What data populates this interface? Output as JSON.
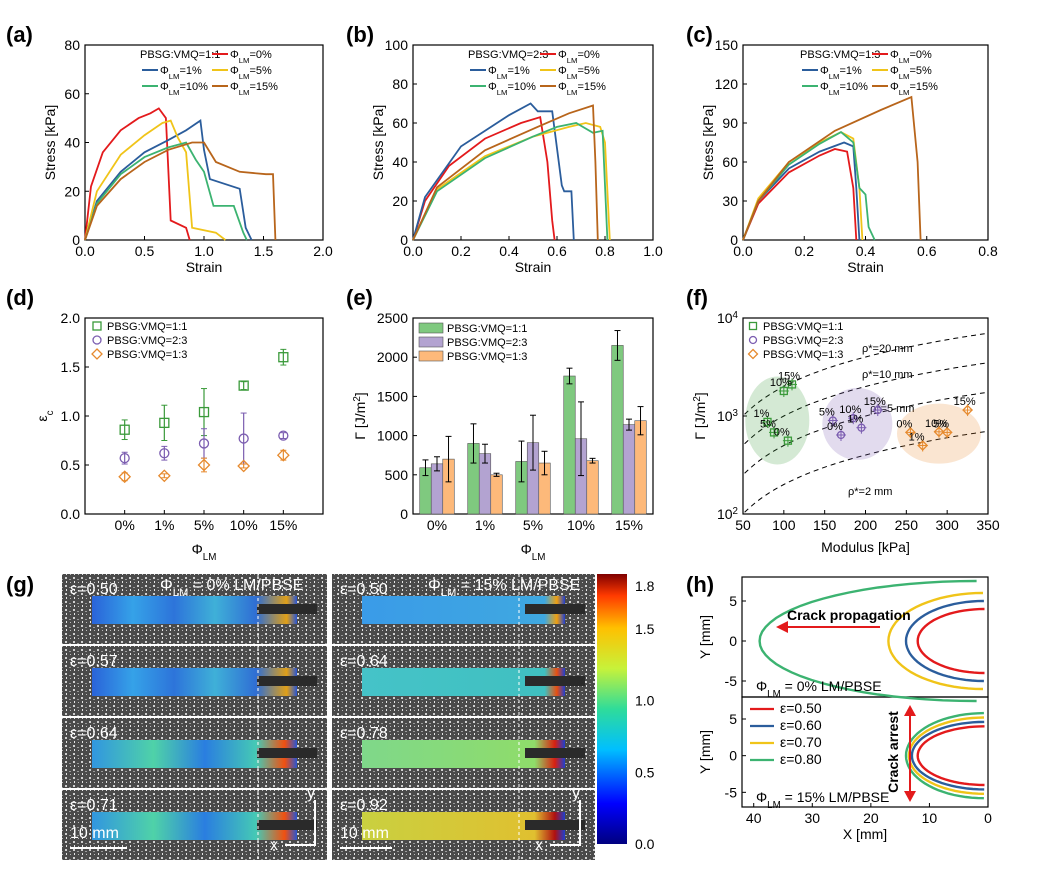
{
  "panels": [
    {
      "label": "(a)"
    },
    {
      "label": "(b)"
    },
    {
      "label": "(c)"
    },
    {
      "label": "(d)"
    },
    {
      "label": "(e)"
    },
    {
      "label": "(f)"
    },
    {
      "label": "(g)"
    },
    {
      "label": "(h)"
    }
  ],
  "colors": {
    "phi0": "#e31a1c",
    "phi1": "#2b5d9c",
    "phi5": "#f0c419",
    "phi10": "#3cb371",
    "phi15": "#b8651b",
    "s11": "#3a9a3a",
    "s23": "#7b5db0",
    "s13": "#e68a2e",
    "bar11": "#7fc97f",
    "bar23": "#b3a3d1",
    "bar13": "#fdb97a"
  },
  "chart_data": [
    {
      "id": "a",
      "type": "line",
      "xlabel": "Strain",
      "ylabel": "Stress [kPa]",
      "xlim": [
        0,
        2.0
      ],
      "ylim": [
        0,
        80
      ],
      "xticks": [
        "0.0",
        "0.5",
        "1.0",
        "1.5",
        "2.0"
      ],
      "yticks": [
        "0",
        "20",
        "40",
        "60",
        "80"
      ],
      "legend_title": "PBSG:VMQ=1:1",
      "legend_labels": [
        "ΦLM=0%",
        "ΦLM=1%",
        "ΦLM=5%",
        "ΦLM=10%",
        "ΦLM=15%"
      ],
      "series": [
        {
          "name": "ΦLM=0%",
          "color": "#e31a1c",
          "x": [
            0,
            0.05,
            0.15,
            0.3,
            0.45,
            0.55,
            0.62,
            0.68,
            0.72,
            0.85,
            0.88
          ],
          "y": [
            0,
            22,
            36,
            45,
            50,
            52,
            54,
            50,
            8,
            5,
            0
          ]
        },
        {
          "name": "ΦLM=1%",
          "color": "#2b5d9c",
          "x": [
            0,
            0.1,
            0.3,
            0.5,
            0.7,
            0.85,
            0.97,
            1.0,
            1.05,
            1.3,
            1.35,
            1.4
          ],
          "y": [
            0,
            16,
            28,
            36,
            41,
            45,
            49,
            37,
            25,
            21,
            5,
            0
          ]
        },
        {
          "name": "ΦLM=5%",
          "color": "#f0c419",
          "x": [
            0,
            0.1,
            0.3,
            0.5,
            0.65,
            0.72,
            0.78,
            0.85,
            0.9,
            1.1,
            1.18
          ],
          "y": [
            0,
            20,
            35,
            43,
            48,
            49,
            42,
            36,
            5,
            3,
            0
          ]
        },
        {
          "name": "ΦLM=10%",
          "color": "#3cb371",
          "x": [
            0,
            0.1,
            0.3,
            0.5,
            0.7,
            0.85,
            0.93,
            1.0,
            1.08,
            1.25,
            1.33,
            1.36
          ],
          "y": [
            0,
            15,
            27,
            34,
            38,
            40,
            33,
            28,
            14,
            14,
            3,
            0
          ]
        },
        {
          "name": "ΦLM=15%",
          "color": "#b8651b",
          "x": [
            0,
            0.1,
            0.3,
            0.5,
            0.7,
            0.9,
            1.0,
            1.1,
            1.3,
            1.52,
            1.58,
            1.6
          ],
          "y": [
            0,
            14,
            25,
            32,
            37,
            40,
            40,
            32,
            28,
            27,
            27,
            0
          ]
        }
      ]
    },
    {
      "id": "b",
      "type": "line",
      "xlabel": "Strain",
      "ylabel": "Stress [kPa]",
      "xlim": [
        0,
        1.0
      ],
      "ylim": [
        0,
        100
      ],
      "xticks": [
        "0.0",
        "0.2",
        "0.4",
        "0.6",
        "0.8",
        "1.0"
      ],
      "yticks": [
        "0",
        "20",
        "40",
        "60",
        "80",
        "100"
      ],
      "legend_title": "PBSG:VMQ=2:3",
      "legend_labels": [
        "ΦLM=0%",
        "ΦLM=1%",
        "ΦLM=5%",
        "ΦLM=10%",
        "ΦLM=15%"
      ],
      "series": [
        {
          "name": "ΦLM=0%",
          "color": "#e31a1c",
          "x": [
            0,
            0.05,
            0.15,
            0.3,
            0.45,
            0.53,
            0.56,
            0.58,
            0.59
          ],
          "y": [
            0,
            20,
            38,
            52,
            60,
            63,
            40,
            10,
            0
          ]
        },
        {
          "name": "ΦLM=1%",
          "color": "#2b5d9c",
          "x": [
            0,
            0.05,
            0.2,
            0.4,
            0.49,
            0.52,
            0.58,
            0.62,
            0.63,
            0.66,
            0.67
          ],
          "y": [
            0,
            22,
            48,
            64,
            70,
            66,
            66,
            28,
            25,
            25,
            0
          ]
        },
        {
          "name": "ΦLM=5%",
          "color": "#f0c419",
          "x": [
            0,
            0.1,
            0.3,
            0.5,
            0.65,
            0.72,
            0.78,
            0.8,
            0.82
          ],
          "y": [
            0,
            26,
            43,
            53,
            58,
            60,
            58,
            50,
            0
          ]
        },
        {
          "name": "ΦLM=10%",
          "color": "#3cb371",
          "x": [
            0,
            0.1,
            0.3,
            0.5,
            0.6,
            0.68,
            0.75,
            0.79,
            0.81
          ],
          "y": [
            0,
            25,
            42,
            53,
            58,
            60,
            55,
            56,
            0
          ]
        },
        {
          "name": "ΦLM=15%",
          "color": "#b8651b",
          "x": [
            0,
            0.1,
            0.3,
            0.5,
            0.65,
            0.75,
            0.76,
            0.77
          ],
          "y": [
            0,
            27,
            46,
            57,
            65,
            69,
            40,
            0
          ]
        }
      ]
    },
    {
      "id": "c",
      "type": "line",
      "xlabel": "Strain",
      "ylabel": "Stress [kPa]",
      "xlim": [
        0,
        0.8
      ],
      "ylim": [
        0,
        150
      ],
      "xticks": [
        "0.0",
        "0.2",
        "0.4",
        "0.6",
        "0.8"
      ],
      "yticks": [
        "0",
        "30",
        "60",
        "90",
        "120",
        "150"
      ],
      "legend_title": "PBSG:VMQ=1:3",
      "legend_labels": [
        "ΦLM=0%",
        "ΦLM=1%",
        "ΦLM=5%",
        "ΦLM=10%",
        "ΦLM=15%"
      ],
      "series": [
        {
          "name": "ΦLM=0%",
          "color": "#e31a1c",
          "x": [
            0,
            0.05,
            0.15,
            0.25,
            0.3,
            0.34,
            0.36,
            0.37
          ],
          "y": [
            0,
            28,
            52,
            65,
            70,
            68,
            40,
            0
          ]
        },
        {
          "name": "ΦLM=1%",
          "color": "#2b5d9c",
          "x": [
            0,
            0.05,
            0.15,
            0.25,
            0.33,
            0.36,
            0.37,
            0.38
          ],
          "y": [
            0,
            30,
            55,
            68,
            75,
            72,
            40,
            0
          ]
        },
        {
          "name": "ΦLM=5%",
          "color": "#f0c419",
          "x": [
            0,
            0.05,
            0.15,
            0.25,
            0.32,
            0.36,
            0.38,
            0.39
          ],
          "y": [
            0,
            32,
            60,
            75,
            83,
            78,
            40,
            0
          ]
        },
        {
          "name": "ΦLM=10%",
          "color": "#3cb371",
          "x": [
            0,
            0.05,
            0.15,
            0.25,
            0.32,
            0.36,
            0.38,
            0.4,
            0.41,
            0.43
          ],
          "y": [
            0,
            30,
            58,
            74,
            83,
            75,
            40,
            35,
            10,
            0
          ]
        },
        {
          "name": "ΦLM=15%",
          "color": "#b8651b",
          "x": [
            0,
            0.05,
            0.15,
            0.3,
            0.45,
            0.55,
            0.57,
            0.58
          ],
          "y": [
            0,
            30,
            60,
            84,
            100,
            110,
            60,
            0
          ]
        }
      ]
    },
    {
      "id": "d",
      "type": "scatter",
      "ylabel": "εc",
      "xlabel": "ΦLM",
      "ylim": [
        0,
        2.0
      ],
      "categories": [
        "0%",
        "1%",
        "5%",
        "10%",
        "15%"
      ],
      "yticks": [
        "0.0",
        "0.5",
        "1.0",
        "1.5",
        "2.0"
      ],
      "series": [
        {
          "name": "PBSG:VMQ=1:1",
          "marker": "square",
          "color": "#3a9a3a",
          "values": [
            0.86,
            0.93,
            1.04,
            1.31,
            1.6
          ],
          "errors": [
            0.1,
            0.18,
            0.24,
            0.04,
            0.08
          ]
        },
        {
          "name": "PBSG:VMQ=2:3",
          "marker": "circle",
          "color": "#7b5db0",
          "values": [
            0.57,
            0.62,
            0.72,
            0.77,
            0.8
          ],
          "errors": [
            0.06,
            0.07,
            0.15,
            0.26,
            0.03
          ]
        },
        {
          "name": "PBSG:VMQ=1:3",
          "marker": "diamond",
          "color": "#e68a2e",
          "values": [
            0.38,
            0.39,
            0.5,
            0.49,
            0.6
          ],
          "errors": [
            0.04,
            0.02,
            0.07,
            0.02,
            0.05
          ]
        }
      ]
    },
    {
      "id": "e",
      "type": "bar",
      "ylabel": "Γ [J/m2]",
      "xlabel": "ΦLM",
      "ylim": [
        0,
        2500
      ],
      "categories": [
        "0%",
        "1%",
        "5%",
        "10%",
        "15%"
      ],
      "yticks": [
        "0",
        "500",
        "1000",
        "1500",
        "2000",
        "2500"
      ],
      "series": [
        {
          "name": "PBSG:VMQ=1:1",
          "color": "#7fc97f",
          "values": [
            590,
            900,
            670,
            1760,
            2150
          ],
          "errors": [
            100,
            250,
            260,
            100,
            190
          ]
        },
        {
          "name": "PBSG:VMQ=2:3",
          "color": "#b3a3d1",
          "values": [
            640,
            770,
            910,
            960,
            1140
          ],
          "errors": [
            90,
            120,
            350,
            470,
            70
          ]
        },
        {
          "name": "PBSG:VMQ=1:3",
          "color": "#fdb97a",
          "values": [
            700,
            500,
            650,
            680,
            1190
          ],
          "errors": [
            290,
            20,
            150,
            30,
            180
          ]
        }
      ]
    },
    {
      "id": "f",
      "type": "scatter",
      "xlabel": "Modulus [kPa]",
      "ylabel": "Γ [J/m2]",
      "xlim": [
        50,
        350
      ],
      "ylim_log": [
        100,
        10000
      ],
      "xticks": [
        "50",
        "100",
        "150",
        "200",
        "250",
        "300",
        "350"
      ],
      "yticks": [
        "10^2",
        "10^3",
        "10^4"
      ],
      "contour_labels": [
        "ρ*=20 mm",
        "ρ*=10 mm",
        "ρ*=5 mm",
        "ρ*=2 mm"
      ],
      "series": [
        {
          "name": "PBSG:VMQ=1:1",
          "marker": "square",
          "color": "#3a9a3a",
          "x": [
            80,
            88,
            105,
            110,
            100
          ],
          "y": [
            870,
            680,
            560,
            2100,
            1800
          ],
          "labels": [
            "1%",
            "5%",
            "0%",
            "15%",
            "10%"
          ]
        },
        {
          "name": "PBSG:VMQ=2:3",
          "marker": "circle",
          "color": "#7b5db0",
          "x": [
            160,
            170,
            185,
            215,
            195
          ],
          "y": [
            900,
            640,
            950,
            1150,
            760
          ],
          "labels": [
            "5%",
            "0%",
            "10%",
            "15%",
            "1%"
          ]
        },
        {
          "name": "PBSG:VMQ=1:3",
          "marker": "diamond",
          "color": "#e68a2e",
          "x": [
            255,
            270,
            290,
            300,
            325
          ],
          "y": [
            680,
            500,
            690,
            680,
            1150
          ],
          "labels": [
            "0%",
            "1%",
            "10%",
            "5%",
            "15%"
          ]
        }
      ]
    },
    {
      "id": "h",
      "type": "line",
      "xlabel": "X [mm]",
      "ylabel": "Y [mm]",
      "xlim": [
        42,
        0
      ],
      "ylim": [
        -7,
        8
      ],
      "xticks": [
        "40",
        "30",
        "20",
        "10",
        "0"
      ],
      "yticks": [
        "5",
        "0",
        "-5"
      ],
      "legend_labels": [
        "ε=0.50",
        "ε=0.60",
        "ε=0.70",
        "ε=0.80"
      ],
      "top_caption": "ΦLM = 0% LM/PBSE",
      "bottom_caption": "ΦLM = 15% LM/PBSE",
      "arrow_top": "Crack propagation",
      "arrow_bottom": "Crack arrest"
    }
  ],
  "g_panel": {
    "left_labels": [
      "ε=0.50",
      "ε=0.57",
      "ε=0.64",
      "ε=0.71"
    ],
    "right_labels": [
      "ε=0.50",
      "ε=0.64",
      "ε=0.78",
      "ε=0.92"
    ],
    "left_title": "ΦLM = 0% LM/PBSE",
    "right_title": "ΦLM = 15% LM/PBSE",
    "scalebar": "10 mm",
    "axis_y": "y",
    "axis_x": "x",
    "colorbar_ticks": [
      "1.8",
      "1.5",
      "1.0",
      "0.5",
      "0.0"
    ],
    "colorbar_values": [
      1.8,
      1.5,
      1.0,
      0.5,
      0.0
    ]
  }
}
